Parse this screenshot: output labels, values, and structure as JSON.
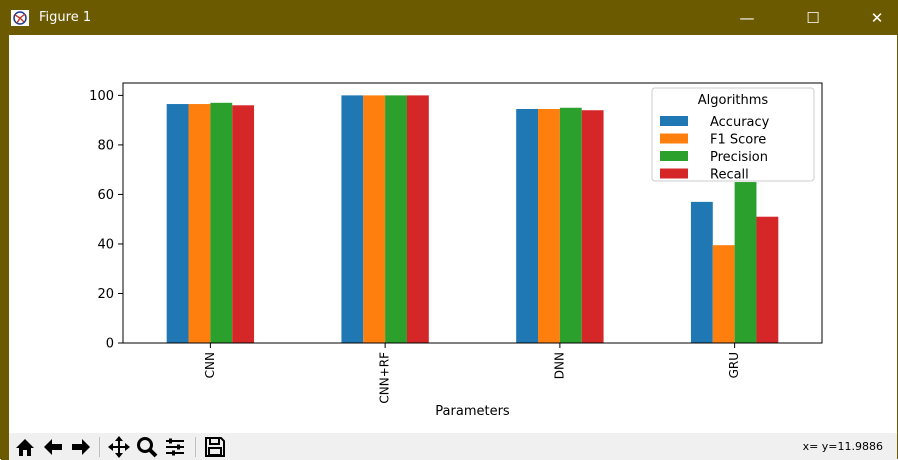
{
  "window": {
    "title": "Figure 1",
    "minimize": "—",
    "maximize": "☐",
    "close": "✕"
  },
  "toolbar": {
    "buttons": [
      {
        "name": "home-icon"
      },
      {
        "name": "back-arrow-icon"
      },
      {
        "name": "forward-arrow-icon"
      },
      {
        "name": "pan-icon"
      },
      {
        "name": "zoom-icon"
      },
      {
        "name": "configure-subplots-icon"
      },
      {
        "name": "save-icon"
      }
    ],
    "coords": "x= y=11.9886"
  },
  "chart_data": {
    "type": "bar",
    "categories": [
      "CNN",
      "CNN+RF",
      "DNN",
      "GRU"
    ],
    "series": [
      {
        "name": "Accuracy",
        "color": "#1f77b4",
        "values": [
          96.5,
          100,
          94.5,
          57
        ]
      },
      {
        "name": "F1 Score",
        "color": "#ff7f0e",
        "values": [
          96.5,
          100,
          94.5,
          39.5
        ]
      },
      {
        "name": "Precision",
        "color": "#2ca02c",
        "values": [
          97,
          100,
          95,
          65
        ]
      },
      {
        "name": "Recall",
        "color": "#d62728",
        "values": [
          96,
          100,
          94,
          51
        ]
      }
    ],
    "xlabel": "Parameters",
    "ylabel": "",
    "ylim": [
      0,
      105
    ],
    "yticks": [
      0,
      20,
      40,
      60,
      80,
      100
    ],
    "legend": {
      "title": "Algorithms",
      "placement": "top-right"
    },
    "grid": false
  }
}
